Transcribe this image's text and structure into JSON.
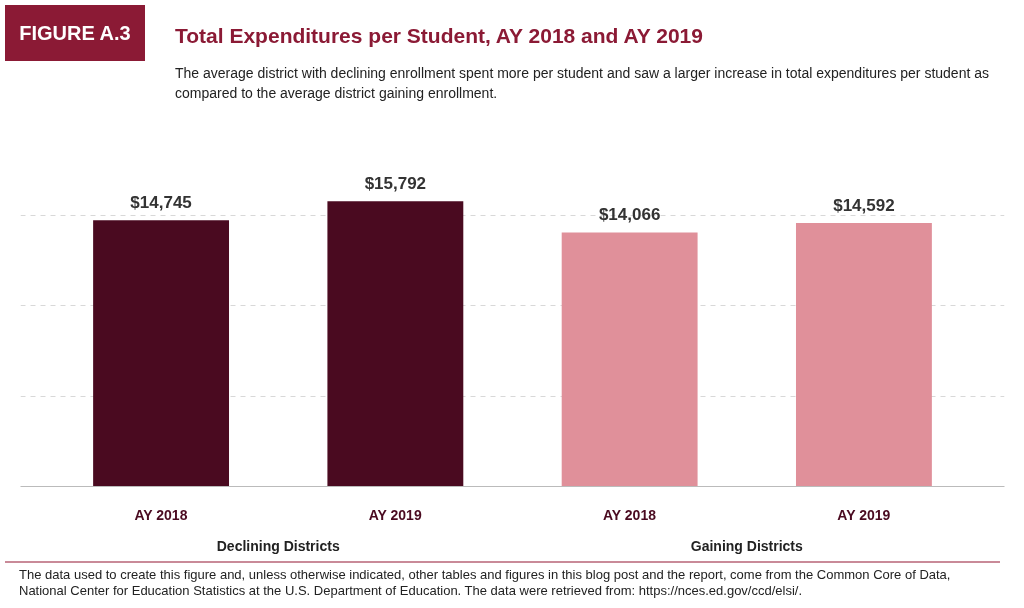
{
  "chart_data": {
    "type": "bar",
    "title": "Total Expenditures per Student, AY 2018 and AY 2019",
    "subtitle": "The average district with declining enrollment spent more per student and saw a larger increase in total expenditures per student as compared to the average district gaining enrollment.",
    "categories": [
      "AY 2018",
      "AY 2019",
      "AY 2018",
      "AY 2019"
    ],
    "values": [
      14745,
      15792,
      14066,
      14592
    ],
    "value_labels": [
      "$14,745",
      "$15,792",
      "$14,066",
      "$14,592"
    ],
    "colors": [
      "#4a0a20",
      "#4a0a20",
      "#e0909a",
      "#e0909a"
    ],
    "grid": "y",
    "tick_labels": "x",
    "annotations": [
      "FIGURE A.3",
      "Declining Districts",
      "Gaining Districts",
      "The data used to create this figure and, unless otherwise indicated, other tables and figures in this blog post and the report, come from the Common Core of Data, National Center for Education Statistics at the U.S. Department of Education. The data were retrieved from: https://nces.ed.gov/ccd/elsi/."
    ]
  }
}
